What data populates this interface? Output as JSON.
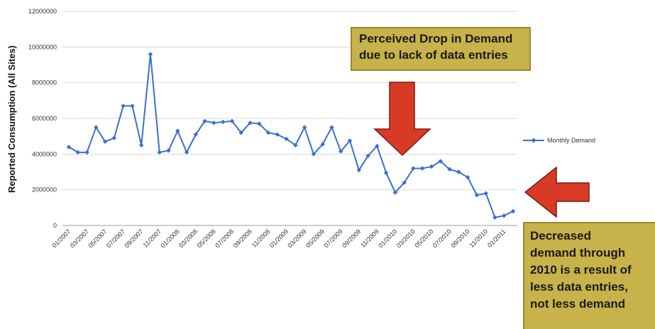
{
  "chart_data": {
    "type": "line",
    "title": "",
    "xlabel": "",
    "ylabel": "Reported Consumption (All Sites)",
    "ylim": [
      0,
      12000000
    ],
    "y_ticks": [
      0,
      2000000,
      4000000,
      6000000,
      8000000,
      10000000,
      12000000
    ],
    "y_tick_labels": [
      "0",
      "2000000",
      "4000000",
      "6000000",
      "8000000",
      "10000000",
      "12000000"
    ],
    "x_tick_labels": [
      "01/2007",
      "03/2007",
      "05/2007",
      "07/2007",
      "09/2007",
      "11/2007",
      "01/2008",
      "03/2008",
      "05/2008",
      "07/2008",
      "09/2008",
      "11/2008",
      "01/2009",
      "03/2009",
      "05/2009",
      "07/2009",
      "09/2009",
      "11/2009",
      "01/2010",
      "03/2010",
      "05/2010",
      "07/2010",
      "09/2010",
      "11/2010",
      "01/2011"
    ],
    "legend_position": "right",
    "series": [
      {
        "name": "Monthly Demand",
        "color": "#3a6fd0",
        "x": [
          "01/2007",
          "02/2007",
          "03/2007",
          "04/2007",
          "05/2007",
          "06/2007",
          "07/2007",
          "08/2007",
          "09/2007",
          "10/2007",
          "11/2007",
          "12/2007",
          "01/2008",
          "02/2008",
          "03/2008",
          "04/2008",
          "05/2008",
          "06/2008",
          "07/2008",
          "08/2008",
          "09/2008",
          "10/2008",
          "11/2008",
          "12/2008",
          "01/2009",
          "02/2009",
          "03/2009",
          "04/2009",
          "05/2009",
          "06/2009",
          "07/2009",
          "08/2009",
          "09/2009",
          "10/2009",
          "11/2009",
          "12/2009",
          "01/2010",
          "02/2010",
          "03/2010",
          "04/2010",
          "05/2010",
          "06/2010",
          "07/2010",
          "08/2010",
          "09/2010",
          "10/2010",
          "11/2010",
          "12/2010",
          "01/2011",
          "02/2011"
        ],
        "values": [
          4400000,
          4100000,
          4100000,
          5500000,
          4700000,
          4900000,
          6700000,
          6700000,
          4500000,
          9600000,
          4100000,
          4200000,
          5300000,
          4100000,
          5100000,
          5850000,
          5750000,
          5800000,
          5850000,
          5200000,
          5750000,
          5700000,
          5200000,
          5100000,
          4850000,
          4500000,
          5500000,
          4000000,
          4550000,
          5500000,
          4150000,
          4750000,
          3100000,
          3900000,
          4450000,
          2950000,
          1850000,
          2400000,
          3200000,
          3200000,
          3300000,
          3600000,
          3150000,
          3000000,
          2700000,
          1700000,
          1800000,
          450000,
          550000,
          800000
        ]
      }
    ]
  },
  "annotations": {
    "top_lines": [
      "Perceived Drop in Demand",
      "due to lack of data entries"
    ],
    "bottom_lines": [
      "Decreased",
      "demand through",
      "2010 is a result of",
      "less data entries,",
      "not less demand"
    ],
    "box_color": "#c8b24a",
    "arrow_color": "#d93a26"
  }
}
